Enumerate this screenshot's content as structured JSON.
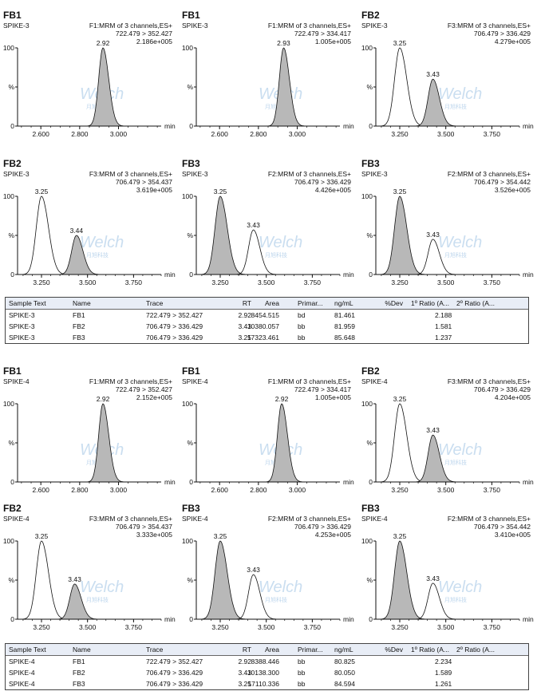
{
  "colors": {
    "axis": "#111111",
    "fill": "#b8b8b8",
    "line": "#111111",
    "table_header_bg": "#e8edf6"
  },
  "watermark": {
    "text": "Welch",
    "subtext": "月旭科技"
  },
  "axis": {
    "y_top_label": "100",
    "y_mid_label": "%",
    "y_zero_label": "0",
    "x_unit": "min"
  },
  "table_headers": [
    "Sample Text",
    "Name",
    "Trace",
    "RT",
    "Area",
    "Primar...",
    "ng/mL",
    "%Dev",
    "1º Ratio (A...",
    "2º Ratio (A..."
  ],
  "tables": [
    {
      "rows": [
        [
          "SPIKE-3",
          "FB1",
          "722.479 > 352.427",
          "2.92",
          "8454.515",
          "bd",
          "81.461",
          "",
          "2.188",
          ""
        ],
        [
          "SPIKE-3",
          "FB2",
          "706.479 > 336.429",
          "3.43",
          "10380.057",
          "bb",
          "81.959",
          "",
          "1.581",
          ""
        ],
        [
          "SPIKE-3",
          "FB3",
          "706.479 > 336.429",
          "3.25",
          "17323.461",
          "bb",
          "85.648",
          "",
          "1.237",
          ""
        ]
      ]
    },
    {
      "rows": [
        [
          "SPIKE-4",
          "FB1",
          "722.479 > 352.427",
          "2.92",
          "8388.446",
          "bb",
          "80.825",
          "",
          "2.234",
          ""
        ],
        [
          "SPIKE-4",
          "FB2",
          "706.479 > 336.429",
          "3.43",
          "10138.300",
          "bb",
          "80.050",
          "",
          "1.589",
          ""
        ],
        [
          "SPIKE-4",
          "FB3",
          "706.479 > 336.429",
          "3.25",
          "17110.336",
          "bb",
          "84.594",
          "",
          "1.261",
          ""
        ]
      ]
    }
  ],
  "chart_data": [
    {
      "type": "line",
      "title": "FB1",
      "sample": "SPIKE-3",
      "function": "F1:MRM of 3 channels,ES+",
      "transition": "722.479 > 352.427",
      "intensity": "2.186e+005",
      "x_ticks": [
        "2.600",
        "2.800",
        "3.000"
      ],
      "x_tick_values": [
        2.6,
        2.8,
        3.0
      ],
      "xlim": [
        2.48,
        3.22
      ],
      "ylim": [
        0,
        100
      ],
      "xlabel": "min",
      "peaks": [
        {
          "rt": 2.92,
          "label": "2.92",
          "height": 100,
          "width": 0.022,
          "filled": true
        }
      ]
    },
    {
      "type": "line",
      "title": "FB1",
      "sample": "SPIKE-3",
      "function": "F1:MRM of 3 channels,ES+",
      "transition": "722.479 > 334.417",
      "intensity": "1.005e+005",
      "x_ticks": [
        "2.600",
        "2.800",
        "3.000"
      ],
      "x_tick_values": [
        2.6,
        2.8,
        3.0
      ],
      "xlim": [
        2.48,
        3.22
      ],
      "ylim": [
        0,
        100
      ],
      "xlabel": "min",
      "peaks": [
        {
          "rt": 2.93,
          "label": "2.93",
          "height": 100,
          "width": 0.022,
          "filled": true
        }
      ]
    },
    {
      "type": "line",
      "title": "FB2",
      "sample": "SPIKE-3",
      "function": "F3:MRM of 3 channels,ES+",
      "transition": "706.479 > 336.429",
      "intensity": "4.279e+005",
      "x_ticks": [
        "3.250",
        "3.500",
        "3.750"
      ],
      "x_tick_values": [
        3.25,
        3.5,
        3.75
      ],
      "xlim": [
        3.12,
        3.9
      ],
      "ylim": [
        0,
        100
      ],
      "xlabel": "min",
      "peaks": [
        {
          "rt": 3.25,
          "label": "3.25",
          "height": 100,
          "width": 0.028,
          "filled": false
        },
        {
          "rt": 3.43,
          "label": "3.43",
          "height": 60,
          "width": 0.026,
          "filled": true
        }
      ]
    },
    {
      "type": "line",
      "title": "FB2",
      "sample": "SPIKE-3",
      "function": "F3:MRM of 3 channels,ES+",
      "transition": "706.479 > 354.437",
      "intensity": "3.619e+005",
      "x_ticks": [
        "3.250",
        "3.500",
        "3.750"
      ],
      "x_tick_values": [
        3.25,
        3.5,
        3.75
      ],
      "xlim": [
        3.12,
        3.9
      ],
      "ylim": [
        0,
        100
      ],
      "xlabel": "min",
      "peaks": [
        {
          "rt": 3.25,
          "label": "3.25",
          "height": 100,
          "width": 0.028,
          "filled": false
        },
        {
          "rt": 3.44,
          "label": "3.44",
          "height": 50,
          "width": 0.026,
          "filled": true
        }
      ]
    },
    {
      "type": "line",
      "title": "FB3",
      "sample": "SPIKE-3",
      "function": "F2:MRM of 3 channels,ES+",
      "transition": "706.479 > 336.429",
      "intensity": "4.426e+005",
      "x_ticks": [
        "3.250",
        "3.500",
        "3.750"
      ],
      "x_tick_values": [
        3.25,
        3.5,
        3.75
      ],
      "xlim": [
        3.12,
        3.9
      ],
      "ylim": [
        0,
        100
      ],
      "xlabel": "min",
      "peaks": [
        {
          "rt": 3.25,
          "label": "3.25",
          "height": 100,
          "width": 0.028,
          "filled": true
        },
        {
          "rt": 3.43,
          "label": "3.43",
          "height": 57,
          "width": 0.026,
          "filled": false
        }
      ]
    },
    {
      "type": "line",
      "title": "FB3",
      "sample": "SPIKE-3",
      "function": "F2:MRM of 3 channels,ES+",
      "transition": "706.479 > 354.442",
      "intensity": "3.526e+005",
      "x_ticks": [
        "3.250",
        "3.500",
        "3.750"
      ],
      "x_tick_values": [
        3.25,
        3.5,
        3.75
      ],
      "xlim": [
        3.12,
        3.9
      ],
      "ylim": [
        0,
        100
      ],
      "xlabel": "min",
      "peaks": [
        {
          "rt": 3.25,
          "label": "3.25",
          "height": 100,
          "width": 0.028,
          "filled": true
        },
        {
          "rt": 3.43,
          "label": "3.43",
          "height": 45,
          "width": 0.026,
          "filled": false
        }
      ]
    },
    {
      "type": "line",
      "title": "FB1",
      "sample": "SPIKE-4",
      "function": "F1:MRM of 3 channels,ES+",
      "transition": "722.479 > 352.427",
      "intensity": "2.152e+005",
      "x_ticks": [
        "2.600",
        "2.800",
        "3.000"
      ],
      "x_tick_values": [
        2.6,
        2.8,
        3.0
      ],
      "xlim": [
        2.48,
        3.22
      ],
      "ylim": [
        0,
        100
      ],
      "xlabel": "min",
      "peaks": [
        {
          "rt": 2.92,
          "label": "2.92",
          "height": 100,
          "width": 0.022,
          "filled": true
        }
      ]
    },
    {
      "type": "line",
      "title": "FB1",
      "sample": "SPIKE-4",
      "function": "F1:MRM of 3 channels,ES+",
      "transition": "722.479 > 334.417",
      "intensity": "1.005e+005",
      "x_ticks": [
        "2.600",
        "2.800",
        "3.000"
      ],
      "x_tick_values": [
        2.6,
        2.8,
        3.0
      ],
      "xlim": [
        2.48,
        3.22
      ],
      "ylim": [
        0,
        100
      ],
      "xlabel": "min",
      "peaks": [
        {
          "rt": 2.92,
          "label": "2.92",
          "height": 100,
          "width": 0.022,
          "filled": true
        }
      ]
    },
    {
      "type": "line",
      "title": "FB2",
      "sample": "SPIKE-4",
      "function": "F3:MRM of 3 channels,ES+",
      "transition": "706.479 > 336.429",
      "intensity": "4.204e+005",
      "x_ticks": [
        "3.250",
        "3.500",
        "3.750"
      ],
      "x_tick_values": [
        3.25,
        3.5,
        3.75
      ],
      "xlim": [
        3.12,
        3.9
      ],
      "ylim": [
        0,
        100
      ],
      "xlabel": "min",
      "peaks": [
        {
          "rt": 3.25,
          "label": "3.25",
          "height": 100,
          "width": 0.028,
          "filled": false
        },
        {
          "rt": 3.43,
          "label": "3.43",
          "height": 60,
          "width": 0.026,
          "filled": true
        }
      ]
    },
    {
      "type": "line",
      "title": "FB2",
      "sample": "SPIKE-4",
      "function": "F3:MRM of 3 channels,ES+",
      "transition": "706.479 > 354.437",
      "intensity": "3.333e+005",
      "x_ticks": [
        "3.250",
        "3.500",
        "3.750"
      ],
      "x_tick_values": [
        3.25,
        3.5,
        3.75
      ],
      "xlim": [
        3.12,
        3.9
      ],
      "ylim": [
        0,
        100
      ],
      "xlabel": "min",
      "peaks": [
        {
          "rt": 3.25,
          "label": "3.25",
          "height": 100,
          "width": 0.028,
          "filled": false
        },
        {
          "rt": 3.43,
          "label": "3.43",
          "height": 45,
          "width": 0.026,
          "filled": true
        }
      ]
    },
    {
      "type": "line",
      "title": "FB3",
      "sample": "SPIKE-4",
      "function": "F2:MRM of 3 channels,ES+",
      "transition": "706.479 > 336.429",
      "intensity": "4.253e+005",
      "x_ticks": [
        "3.250",
        "3.500",
        "3.750"
      ],
      "x_tick_values": [
        3.25,
        3.5,
        3.75
      ],
      "xlim": [
        3.12,
        3.9
      ],
      "ylim": [
        0,
        100
      ],
      "xlabel": "min",
      "peaks": [
        {
          "rt": 3.25,
          "label": "3.25",
          "height": 100,
          "width": 0.028,
          "filled": true
        },
        {
          "rt": 3.43,
          "label": "3.43",
          "height": 57,
          "width": 0.026,
          "filled": false
        }
      ]
    },
    {
      "type": "line",
      "title": "FB3",
      "sample": "SPIKE-4",
      "function": "F2:MRM of 3 channels,ES+",
      "transition": "706.479 > 354.442",
      "intensity": "3.410e+005",
      "x_ticks": [
        "3.250",
        "3.500",
        "3.750"
      ],
      "x_tick_values": [
        3.25,
        3.5,
        3.75
      ],
      "xlim": [
        3.12,
        3.9
      ],
      "ylim": [
        0,
        100
      ],
      "xlabel": "min",
      "peaks": [
        {
          "rt": 3.25,
          "label": "3.25",
          "height": 100,
          "width": 0.028,
          "filled": true
        },
        {
          "rt": 3.43,
          "label": "3.43",
          "height": 46,
          "width": 0.026,
          "filled": false
        }
      ]
    }
  ]
}
